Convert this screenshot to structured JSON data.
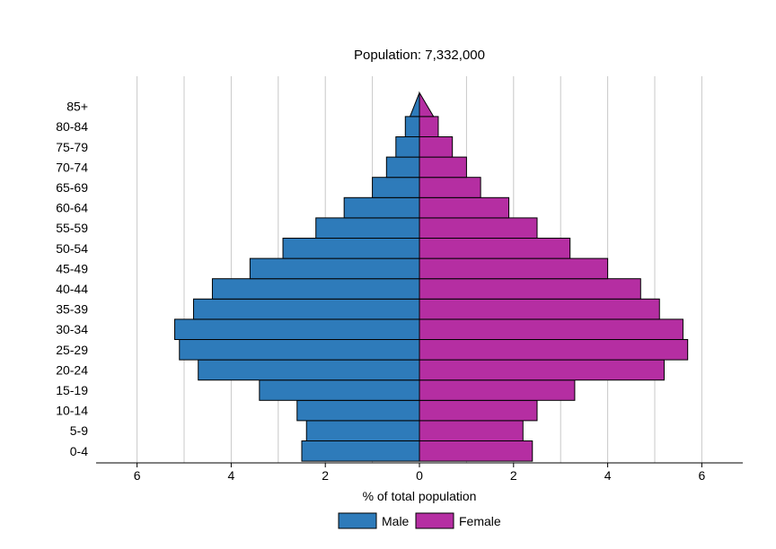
{
  "chart_data": {
    "type": "bar",
    "orientation": "horizontal",
    "title": "Population: 7,332,000",
    "xlabel": "% of total population",
    "ylabel": "",
    "categories": [
      "0-4",
      "5-9",
      "10-14",
      "15-19",
      "20-24",
      "25-29",
      "30-34",
      "35-39",
      "40-44",
      "45-49",
      "50-54",
      "55-59",
      "60-64",
      "65-69",
      "70-74",
      "75-79",
      "80-84",
      "85+"
    ],
    "series": [
      {
        "name": "Male",
        "color": "#2e7bba",
        "values": [
          2.5,
          2.4,
          2.6,
          3.4,
          4.7,
          5.1,
          5.2,
          4.8,
          4.4,
          3.6,
          2.9,
          2.2,
          1.6,
          1.0,
          0.7,
          0.5,
          0.3,
          0.2
        ]
      },
      {
        "name": "Female",
        "color": "#b52ea2",
        "values": [
          2.4,
          2.2,
          2.5,
          3.3,
          5.2,
          5.7,
          5.6,
          5.1,
          4.7,
          4.0,
          3.2,
          2.5,
          1.9,
          1.3,
          1.0,
          0.7,
          0.4,
          0.3
        ]
      }
    ],
    "xlim": [
      -6.9,
      6.9
    ],
    "xticks": [
      -6,
      -4,
      -2,
      0,
      2,
      4,
      6
    ],
    "xtick_labels": [
      "6",
      "4",
      "2",
      "0",
      "2",
      "4",
      "6"
    ],
    "grid": "vertical",
    "legend": "bottom"
  }
}
